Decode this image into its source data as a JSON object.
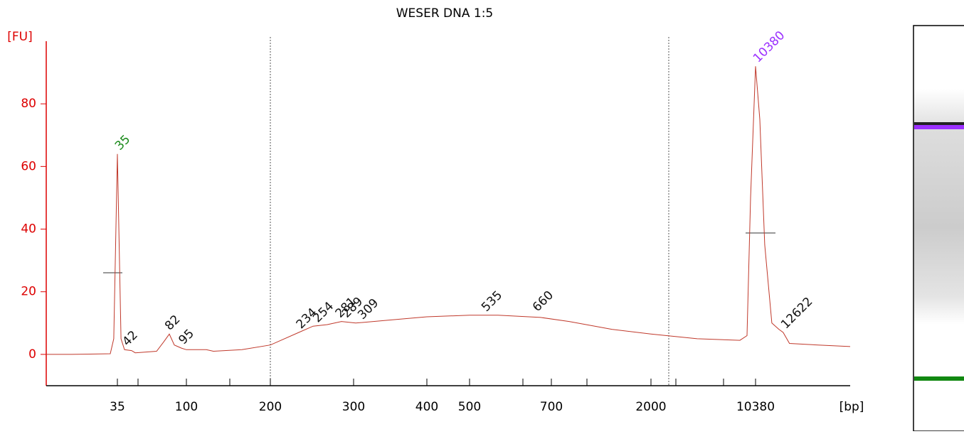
{
  "chart_data": {
    "type": "line",
    "title": "WESER DNA 1:5",
    "y_label": "[FU]",
    "x_label": "[bp]",
    "series": [
      {
        "color": "#c0392b",
        "x": [
          -32,
          -8.5,
          28.3,
          31.6,
          35,
          38.4,
          41.7,
          48.4,
          51.8,
          71.9,
          78.6,
          83.9,
          88.6,
          95.3,
          100,
          123.7,
          132.2,
          166.1,
          200,
          234.2,
          251.3,
          268.4,
          285.5,
          302.9,
          351.5,
          400,
          500,
          569.6,
          673.9,
          932,
          1489,
          2000,
          5706,
          9126,
          9696,
          9981,
          10380,
          10722,
          11121,
          11691,
          12261,
          12602,
          13115,
          15422,
          18000
        ],
        "values": [
          0,
          0,
          0.2,
          5,
          64,
          5,
          1.5,
          1.2,
          0.5,
          1,
          4,
          6.5,
          3,
          2,
          1.5,
          1.5,
          1,
          1.5,
          3,
          7,
          9,
          9.5,
          10.5,
          10,
          11,
          12,
          12.5,
          12.5,
          11.8,
          10.5,
          8,
          6.5,
          5,
          4.5,
          6,
          50,
          92,
          75,
          35,
          10,
          8,
          7,
          3.5,
          3,
          2.5
        ]
      }
    ],
    "peaks": [
      {
        "x": 35,
        "y": 64,
        "color": "#1a8a1a"
      },
      {
        "x": 42,
        "y": 1.5,
        "color": "#111"
      },
      {
        "x": 82,
        "y": 6.5,
        "color": "#111"
      },
      {
        "x": 95,
        "y": 2,
        "color": "#111"
      },
      {
        "x": 234,
        "y": 7,
        "color": "#111"
      },
      {
        "x": 254,
        "y": 9,
        "color": "#111"
      },
      {
        "x": 281,
        "y": 10.5,
        "color": "#111"
      },
      {
        "x": 289,
        "y": 10.5,
        "color": "#111"
      },
      {
        "x": 309,
        "y": 10,
        "color": "#111"
      },
      {
        "x": 535,
        "y": 12.5,
        "color": "#111"
      },
      {
        "x": 660,
        "y": 12.5,
        "color": "#111"
      },
      {
        "x": 10380,
        "y": 92,
        "color": "#9b30ff"
      },
      {
        "x": 12622,
        "y": 7,
        "color": "#111"
      }
    ],
    "xlim": [
      -32,
      18000
    ],
    "xticks": [
      35,
      100,
      200,
      300,
      400,
      500,
      700,
      2000,
      10380
    ],
    "ylim": [
      -10,
      100
    ],
    "yticks": [
      0,
      20,
      40,
      60,
      80
    ]
  }
}
